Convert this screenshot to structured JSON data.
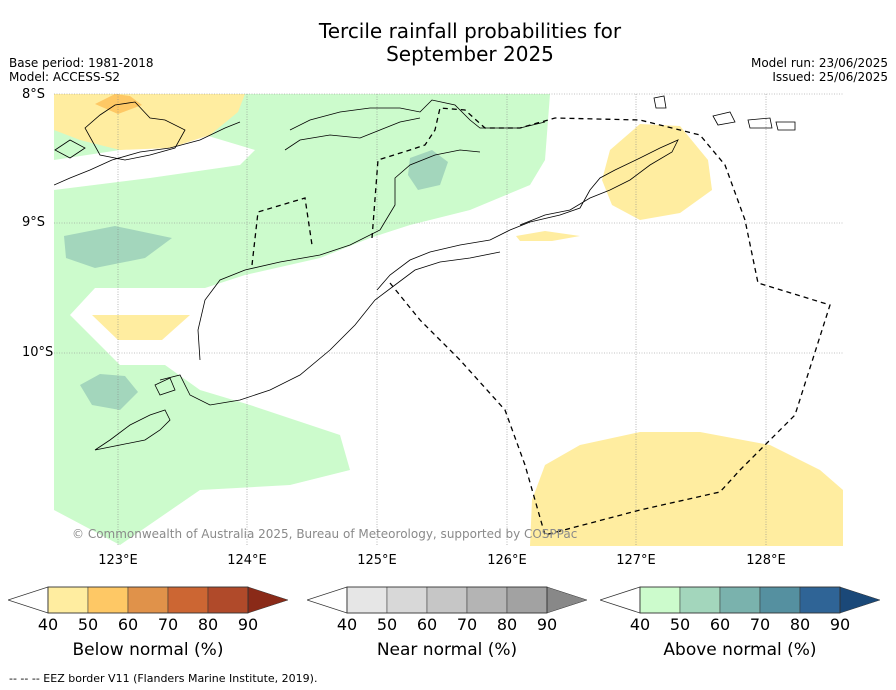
{
  "title_line1": "Tercile rainfall probabilities for",
  "title_line2": "September 2025",
  "meta_left": {
    "base_period": "Base period: 1981-2018",
    "model": "Model: ACCESS-S2"
  },
  "meta_right": {
    "model_run": "Model run: 23/06/2025",
    "issued": "Issued: 25/06/2025"
  },
  "lat_labels": [
    "8°S",
    "9°S",
    "10°S"
  ],
  "lon_labels": [
    "123°E",
    "124°E",
    "125°E",
    "126°E",
    "127°E",
    "128°E"
  ],
  "copyright": "© Commonwealth of Australia 2025, Bureau of Meteorology, supported by COSPPac",
  "colorbars": [
    {
      "title": "Below normal (%)",
      "ticks": [
        "40",
        "50",
        "60",
        "70",
        "80",
        "90"
      ],
      "colors": [
        "#ffeda0",
        "#fec865",
        "#e0924a",
        "#cc6633",
        "#b04a2a",
        "#8a2a18"
      ]
    },
    {
      "title": "Near normal (%)",
      "ticks": [
        "40",
        "50",
        "60",
        "70",
        "80",
        "90"
      ],
      "colors": [
        "#e6e6e6",
        "#d8d8d8",
        "#c6c6c6",
        "#b4b4b4",
        "#a2a2a2",
        "#888888"
      ]
    },
    {
      "title": "Above normal (%)",
      "ticks": [
        "40",
        "50",
        "60",
        "70",
        "80",
        "90"
      ],
      "colors": [
        "#ccfbcc",
        "#a3d6bc",
        "#7ab2ad",
        "#5590a0",
        "#2f6496",
        "#1a4878"
      ]
    }
  ],
  "footer": "--  --  -- EEZ border V11 (Flanders Marine Institute, 2019).",
  "colors": {
    "above_40": "#ccfbcc",
    "above_50": "#a3d6bc",
    "below_40": "#ffeda0",
    "below_50": "#fec865"
  }
}
